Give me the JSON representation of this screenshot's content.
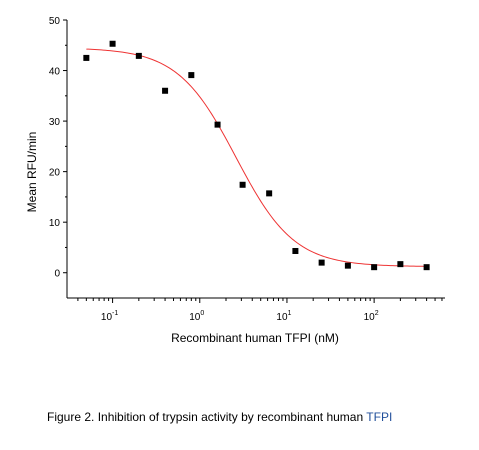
{
  "chart_data": {
    "type": "scatter",
    "title": "",
    "xlabel": "Recombinant human TFPI (nM)",
    "ylabel": "Mean RFU/min",
    "x_scale": "log",
    "xlim": [
      0.03,
      650
    ],
    "ylim": [
      -5,
      50
    ],
    "x_ticks": [
      0.1,
      1,
      10,
      100
    ],
    "x_tick_labels": [
      {
        "base": "10",
        "exp": "-1"
      },
      {
        "base": "10",
        "exp": "0"
      },
      {
        "base": "10",
        "exp": "1"
      },
      {
        "base": "10",
        "exp": "2"
      }
    ],
    "y_ticks": [
      0,
      10,
      20,
      30,
      40,
      50
    ],
    "y_tick_labels": [
      "0",
      "10",
      "20",
      "30",
      "40",
      "50"
    ],
    "grid": false,
    "legend": "none",
    "series": [
      {
        "kind": "points",
        "marker": "square",
        "color": "#000000",
        "x": [
          0.05,
          0.1,
          0.2,
          0.4,
          0.8,
          1.6,
          3.1,
          6.25,
          12.5,
          25,
          50,
          100,
          200,
          400
        ],
        "y": [
          42.5,
          45.3,
          42.9,
          36.0,
          39.1,
          29.3,
          17.4,
          15.7,
          4.3,
          2.0,
          1.4,
          1.1,
          1.7,
          1.1
        ]
      },
      {
        "kind": "fit",
        "model": "four-parameter logistic",
        "color": "#ee3333",
        "top": 44.5,
        "bottom": 1.2,
        "ic50": 2.6,
        "hill": 1.3,
        "x_range": [
          0.05,
          400
        ]
      }
    ]
  },
  "caption": {
    "text": "Figure 2. Inhibition of trypsin activity by recombinant human ",
    "accent": "TFPI",
    "accent_color": "#1f4e9a"
  }
}
